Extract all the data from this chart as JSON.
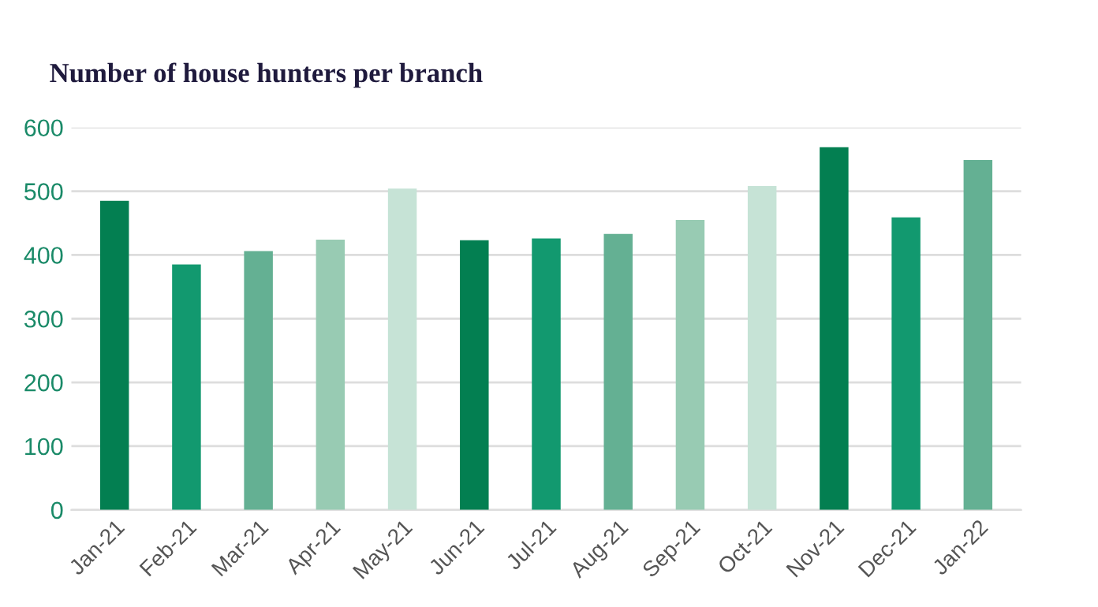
{
  "chart_data": {
    "type": "bar",
    "title": "Number of house hunters per branch",
    "categories": [
      "Jan-21",
      "Feb-21",
      "Mar-21",
      "Apr-21",
      "May-21",
      "Jun-21",
      "Jul-21",
      "Aug-21",
      "Sep-21",
      "Oct-21",
      "Nov-21",
      "Dec-21",
      "Jan-22"
    ],
    "values": [
      485,
      385,
      406,
      424,
      504,
      423,
      426,
      433,
      455,
      508,
      569,
      459,
      549
    ],
    "colors": [
      "#037f51",
      "#12996f",
      "#64b093",
      "#98cbb3",
      "#c6e3d6",
      "#037f51",
      "#12996f",
      "#64b093",
      "#98cbb3",
      "#c6e3d6",
      "#037f51",
      "#12996f",
      "#64b093"
    ],
    "ylim": [
      0,
      600
    ],
    "yticks": [
      0,
      100,
      200,
      300,
      400,
      500,
      600
    ],
    "grid": "y"
  }
}
